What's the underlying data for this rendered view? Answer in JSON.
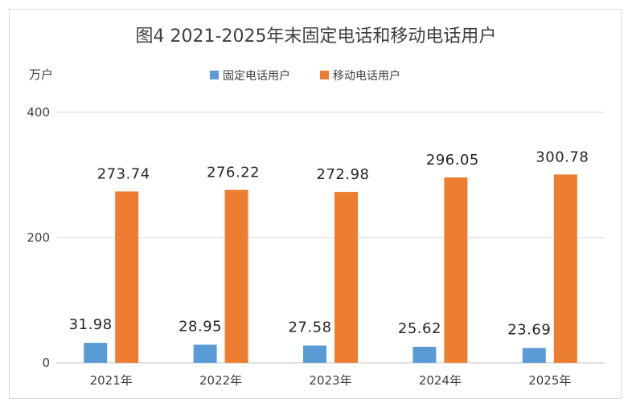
{
  "chart_data": {
    "type": "bar",
    "title": "图4  2021-2025年末固定电话和移动电话用户",
    "ylabel": "万户",
    "ylim": [
      0,
      400
    ],
    "yticks": [
      0,
      200,
      400
    ],
    "grid": true,
    "legend_position": "top",
    "categories": [
      "2021年",
      "2022年",
      "2023年",
      "2024年",
      "2025年"
    ],
    "series": [
      {
        "name": "固定电话用户",
        "color": "#5b9bd5",
        "values": [
          31.98,
          28.95,
          27.58,
          25.62,
          23.69
        ]
      },
      {
        "name": "移动电话用户",
        "color": "#ed7d31",
        "values": [
          273.74,
          276.22,
          272.98,
          296.05,
          300.78
        ]
      }
    ]
  }
}
